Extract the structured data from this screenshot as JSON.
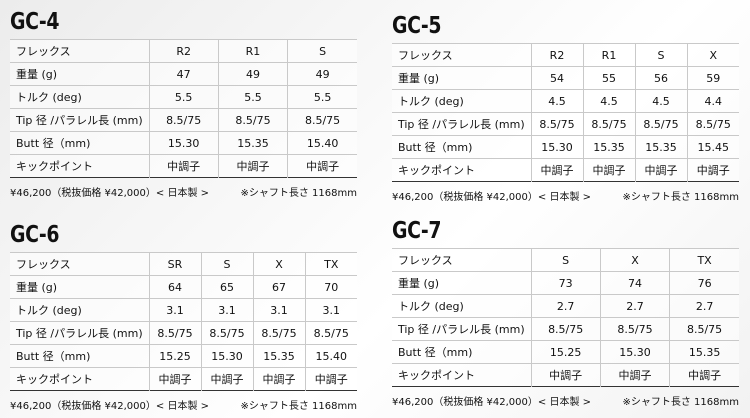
{
  "blocks": [
    {
      "title": "GC-4",
      "headers": [
        "R2",
        "R1",
        "S"
      ],
      "rows": [
        {
          "label": "フレックス",
          "cells": [
            "R2",
            "R1",
            "S"
          ]
        },
        {
          "label": "重量 (g)",
          "cells": [
            "47",
            "49",
            "49"
          ]
        },
        {
          "label": "トルク (deg)",
          "cells": [
            "5.5",
            "5.5",
            "5.5"
          ]
        },
        {
          "label": "Tip 径 /パラレル長 (mm)",
          "cells": [
            "8.5/75",
            "8.5/75",
            "8.5/75"
          ]
        },
        {
          "label": "Butt 径（mm)",
          "cells": [
            "15.30",
            "15.35",
            "15.40"
          ]
        },
        {
          "label": "キックポイント",
          "cells": [
            "中調子",
            "中調子",
            "中調子"
          ]
        }
      ],
      "price_note": "¥46,200（税抜価格 ¥42,000）< 日本製 >",
      "length_note": "※シャフト長さ 1168mm"
    },
    {
      "title": "GC-5",
      "rows": [
        {
          "label": "フレックス",
          "cells": [
            "R2",
            "R1",
            "S",
            "X"
          ]
        },
        {
          "label": "重量 (g)",
          "cells": [
            "54",
            "55",
            "56",
            "59"
          ]
        },
        {
          "label": "トルク (deg)",
          "cells": [
            "4.5",
            "4.5",
            "4.5",
            "4.4"
          ]
        },
        {
          "label": "Tip 径 /パラレル長 (mm)",
          "cells": [
            "8.5/75",
            "8.5/75",
            "8.5/75",
            "8.5/75"
          ]
        },
        {
          "label": "Butt 径（mm)",
          "cells": [
            "15.30",
            "15.35",
            "15.35",
            "15.45"
          ]
        },
        {
          "label": "キックポイント",
          "cells": [
            "中調子",
            "中調子",
            "中調子",
            "中調子"
          ]
        }
      ],
      "price_note": "¥46,200（税抜価格 ¥42,000）< 日本製 >",
      "length_note": "※シャフト長さ 1168mm"
    },
    {
      "title": "GC-6",
      "rows": [
        {
          "label": "フレックス",
          "cells": [
            "SR",
            "S",
            "X",
            "TX"
          ]
        },
        {
          "label": "重量 (g)",
          "cells": [
            "64",
            "65",
            "67",
            "70"
          ]
        },
        {
          "label": "トルク (deg)",
          "cells": [
            "3.1",
            "3.1",
            "3.1",
            "3.1"
          ]
        },
        {
          "label": "Tip 径 /パラレル長 (mm)",
          "cells": [
            "8.5/75",
            "8.5/75",
            "8.5/75",
            "8.5/75"
          ]
        },
        {
          "label": "Butt 径（mm)",
          "cells": [
            "15.25",
            "15.30",
            "15.35",
            "15.40"
          ]
        },
        {
          "label": "キックポイント",
          "cells": [
            "中調子",
            "中調子",
            "中調子",
            "中調子"
          ]
        }
      ],
      "price_note": "¥46,200（税抜価格 ¥42,000）< 日本製 >",
      "length_note": "※シャフト長さ 1168mm"
    },
    {
      "title": "GC-7",
      "rows": [
        {
          "label": "フレックス",
          "cells": [
            "S",
            "X",
            "TX"
          ]
        },
        {
          "label": "重量 (g)",
          "cells": [
            "73",
            "74",
            "76"
          ]
        },
        {
          "label": "トルク (deg)",
          "cells": [
            "2.7",
            "2.7",
            "2.7"
          ]
        },
        {
          "label": "Tip 径 /パラレル長 (mm)",
          "cells": [
            "8.5/75",
            "8.5/75",
            "8.5/75"
          ]
        },
        {
          "label": "Butt 径（mm)",
          "cells": [
            "15.25",
            "15.30",
            "15.35"
          ]
        },
        {
          "label": "キックポイント",
          "cells": [
            "中調子",
            "中調子",
            "中調子"
          ]
        }
      ],
      "price_note": "¥46,200（税抜価格 ¥42,000）< 日本製 >",
      "length_note": "※シャフト長さ 1168mm"
    }
  ]
}
